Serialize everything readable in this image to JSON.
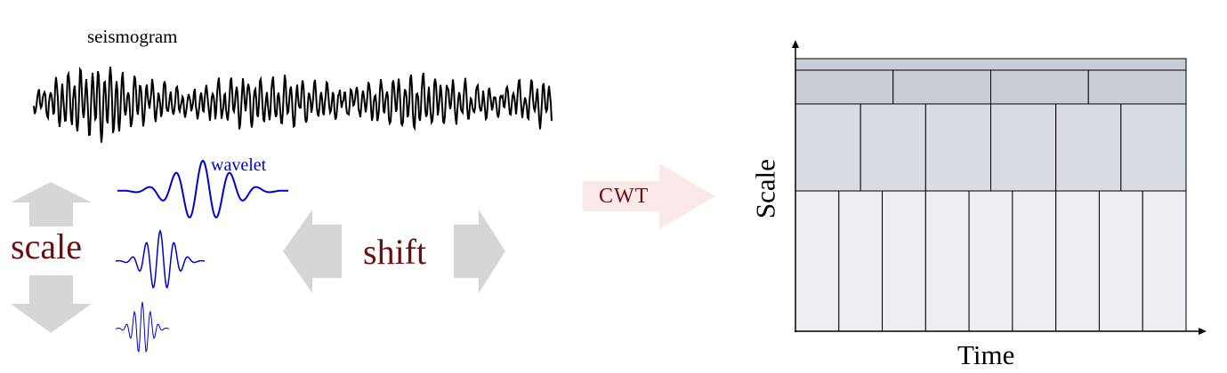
{
  "labels": {
    "seismogram": "seismogram",
    "wavelet": "wavelet",
    "scale": "scale",
    "shift": "shift",
    "cwt": "CWT",
    "time_axis": "Time",
    "scale_axis": "Scale"
  },
  "colors": {
    "label_dark_red": "#6e0d0d",
    "wavelet_blue": "#0000cc",
    "arrow_gray": "#d6d6d6",
    "cwt_arrow": "#fbe9e9",
    "band_dark": "#c9cdd6",
    "band_mid": "#d9dce3",
    "band_light": "#eceef2"
  },
  "tiling": {
    "rows": [
      {
        "band": "top",
        "cells": 1
      },
      {
        "band": "second",
        "cells": 4
      },
      {
        "band": "third",
        "cells": 6
      },
      {
        "band": "bottom",
        "cells": 9
      }
    ]
  }
}
